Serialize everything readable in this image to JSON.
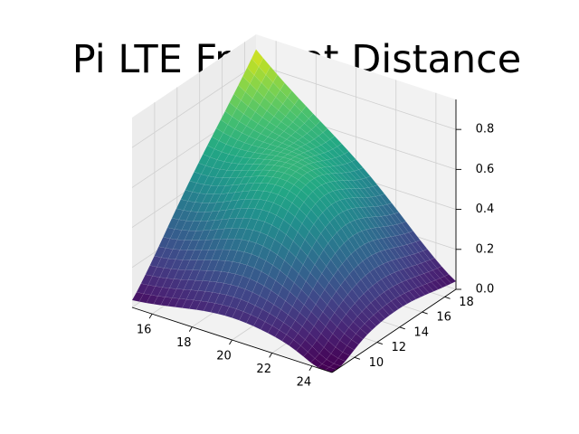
{
  "chart_data": {
    "type": "surface3d",
    "title": "Pi LTE Frechet Distance",
    "colormap": "viridis",
    "grid": true,
    "x": {
      "range": [
        15,
        25
      ],
      "ticks": [
        16,
        18,
        20,
        22,
        24
      ],
      "tick_labels": [
        "16",
        "18",
        "20",
        "22",
        "24"
      ]
    },
    "y": {
      "range": [
        8,
        19
      ],
      "ticks": [
        10,
        12,
        14,
        16,
        18
      ],
      "tick_labels": [
        "10",
        "12",
        "14",
        "16",
        "18"
      ]
    },
    "z": {
      "range": [
        0,
        0.95
      ],
      "ticks": [
        0.0,
        0.2,
        0.4,
        0.6,
        0.8
      ],
      "tick_labels": [
        "0.0",
        "0.2",
        "0.4",
        "0.6",
        "0.8"
      ]
    },
    "surface": {
      "description_peak": {
        "x": 15,
        "y": 19,
        "z": 0.92
      },
      "corners": [
        {
          "x": 15,
          "y": 8,
          "z": 0.02
        },
        {
          "x": 25,
          "y": 8,
          "z": 0.0
        },
        {
          "x": 25,
          "y": 19,
          "z": 0.0
        },
        {
          "x": 15,
          "y": 19,
          "z": 0.92
        }
      ],
      "saddle_center": {
        "x": 20,
        "y": 13.5,
        "z": 0.45
      }
    }
  }
}
